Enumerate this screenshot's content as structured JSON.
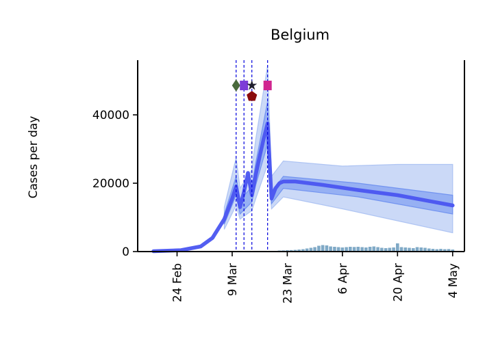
{
  "chart_data": {
    "type": "line",
    "title": "Belgium",
    "xlabel": "",
    "ylabel": "Cases per day",
    "x_unit": "day of year 2020",
    "xlim": [
      "2020-02-14",
      "2020-05-07"
    ],
    "ylim": [
      0,
      56000
    ],
    "y_ticks": [
      0,
      20000,
      40000
    ],
    "x_ticks": [
      {
        "date": "2020-02-24",
        "label": "24 Feb"
      },
      {
        "date": "2020-03-09",
        "label": "9 Mar"
      },
      {
        "date": "2020-03-23",
        "label": "23 Mar"
      },
      {
        "date": "2020-04-06",
        "label": "6 Apr"
      },
      {
        "date": "2020-04-20",
        "label": "20 Apr"
      },
      {
        "date": "2020-05-04",
        "label": "4 May"
      }
    ],
    "grid": false,
    "colors": {
      "median": "#4a55f0",
      "band_inner": "#6b8ef0",
      "band_outer": "#a9c0f2",
      "observed_bars": "#7fa9c6",
      "intervention_lines": "#0000dd"
    },
    "series": [
      {
        "role": "median",
        "x": [
          "2020-02-18",
          "2020-02-25",
          "2020-03-01",
          "2020-03-04",
          "2020-03-07",
          "2020-03-09",
          "2020-03-10",
          "2020-03-11",
          "2020-03-12",
          "2020-03-13",
          "2020-03-14",
          "2020-03-15",
          "2020-03-16",
          "2020-03-17",
          "2020-03-18",
          "2020-03-19",
          "2020-03-20",
          "2020-03-21",
          "2020-03-22",
          "2020-03-25",
          "2020-04-01",
          "2020-04-10",
          "2020-04-20",
          "2020-05-04"
        ],
        "y": [
          100,
          400,
          1500,
          4000,
          9500,
          15500,
          19000,
          13000,
          17500,
          23000,
          16500,
          22500,
          28000,
          33000,
          37500,
          15500,
          18500,
          20000,
          20500,
          20500,
          19500,
          18000,
          16500,
          13500
        ]
      },
      {
        "role": "inner-band-upper",
        "x": [
          "2020-03-07",
          "2020-03-10",
          "2020-03-11",
          "2020-03-14",
          "2020-03-15",
          "2020-03-18",
          "2020-03-19",
          "2020-03-22",
          "2020-04-10",
          "2020-05-04"
        ],
        "y": [
          11000,
          22000,
          15000,
          19000,
          26000,
          44000,
          17500,
          22000,
          20000,
          16500
        ]
      },
      {
        "role": "inner-band-lower",
        "x": [
          "2020-03-07",
          "2020-03-10",
          "2020-03-11",
          "2020-03-14",
          "2020-03-15",
          "2020-03-18",
          "2020-03-19",
          "2020-03-22",
          "2020-04-10",
          "2020-05-04"
        ],
        "y": [
          8000,
          16500,
          11000,
          14500,
          19500,
          31500,
          14000,
          18500,
          16000,
          11000
        ]
      },
      {
        "role": "outer-band-upper",
        "x": [
          "2020-03-07",
          "2020-03-10",
          "2020-03-11",
          "2020-03-14",
          "2020-03-15",
          "2020-03-18",
          "2020-03-19",
          "2020-03-22",
          "2020-04-06",
          "2020-04-20",
          "2020-05-04"
        ],
        "y": [
          13000,
          27500,
          18500,
          24000,
          33000,
          54500,
          22000,
          26500,
          25000,
          25500,
          25500
        ]
      },
      {
        "role": "outer-band-lower",
        "x": [
          "2020-03-07",
          "2020-03-10",
          "2020-03-11",
          "2020-03-14",
          "2020-03-15",
          "2020-03-18",
          "2020-03-19",
          "2020-03-22",
          "2020-04-06",
          "2020-04-20",
          "2020-05-04"
        ],
        "y": [
          6500,
          13500,
          9500,
          12000,
          15500,
          25500,
          12500,
          16000,
          12500,
          9000,
          5500
        ]
      }
    ],
    "observed_bars": {
      "start": "2020-03-21",
      "values": [
        300,
        350,
        400,
        450,
        500,
        600,
        700,
        900,
        1100,
        1300,
        1700,
        1900,
        1800,
        1500,
        1400,
        1300,
        1200,
        1300,
        1400,
        1350,
        1400,
        1300,
        1200,
        1400,
        1500,
        1300,
        1100,
        1000,
        1100,
        1200,
        2400,
        1300,
        1200,
        1100,
        1000,
        1300,
        1200,
        1100,
        900,
        800,
        700,
        800,
        700,
        750,
        600
      ]
    },
    "interventions": [
      {
        "date": "2020-03-10",
        "marker": "diamond",
        "color": "#4a6a3c"
      },
      {
        "date": "2020-03-12",
        "marker": "square",
        "color": "#7d3cd8"
      },
      {
        "date": "2020-03-14",
        "marker": "star",
        "color": "#1e1e2e"
      },
      {
        "date": "2020-03-14",
        "marker": "pentagon",
        "color": "#8b0c0c"
      },
      {
        "date": "2020-03-18",
        "marker": "square",
        "color": "#d0268f"
      }
    ]
  }
}
